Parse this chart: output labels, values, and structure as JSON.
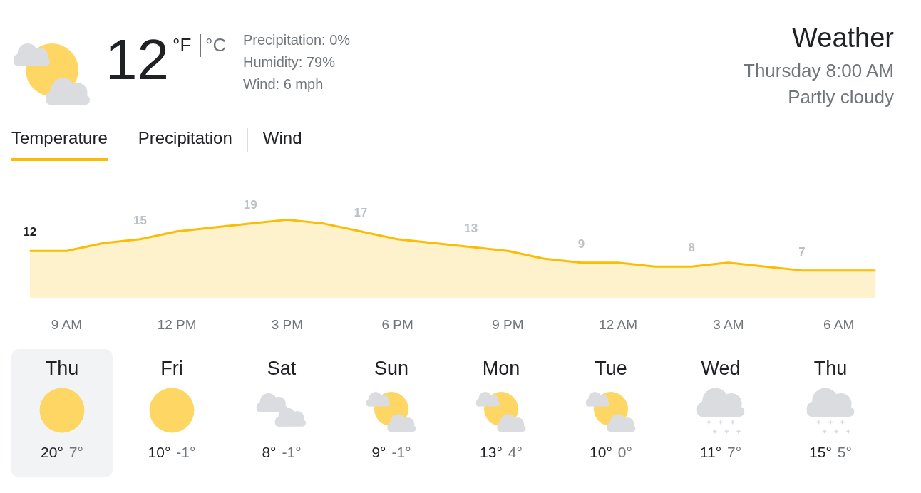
{
  "chart_data": [
    {
      "type": "other",
      "title": "Weather",
      "subtitle": "Thursday 8:00 AM",
      "annotations": [
        "Partly cloudy",
        "12",
        "°F",
        "°C",
        "Precipitation: 0%",
        "Humidity: 79%",
        "Wind: 6 mph",
        "Temperature",
        "Precipitation",
        "Wind"
      ]
    },
    {
      "type": "area",
      "color": "#fbbc04",
      "categories": [
        null,
        "9 AM",
        null,
        null,
        "12 PM",
        null,
        null,
        "3 PM",
        null,
        null,
        "6 PM",
        null,
        null,
        "9 PM",
        null,
        null,
        "12 AM",
        null,
        null,
        "3 AM",
        null,
        null,
        "6 AM",
        null
      ],
      "values": [
        12,
        12,
        14,
        15,
        17,
        18,
        19,
        20,
        19,
        17,
        15,
        14,
        13,
        12,
        10,
        9,
        9,
        8,
        8,
        9,
        8,
        7,
        7,
        7
      ],
      "value_labels": [
        "12",
        null,
        null,
        "15",
        null,
        null,
        "19",
        null,
        null,
        "17",
        null,
        null,
        "13",
        null,
        null,
        "9",
        null,
        null,
        "8",
        null,
        null,
        "7",
        null,
        null
      ],
      "grid": false,
      "tick_labels": "x"
    },
    {
      "type": "other",
      "categories": [
        "Thu",
        "Fri",
        "Sat",
        "Sun",
        "Mon",
        "Tue",
        "Wed",
        "Thu"
      ],
      "annotations": [
        "20°",
        "7°",
        "10°",
        "-1°",
        "8°",
        "-1°",
        "9°",
        "-1°",
        "13°",
        "4°",
        "10°",
        "0°",
        "11°",
        "7°",
        "15°",
        "5°"
      ]
    }
  ]
}
